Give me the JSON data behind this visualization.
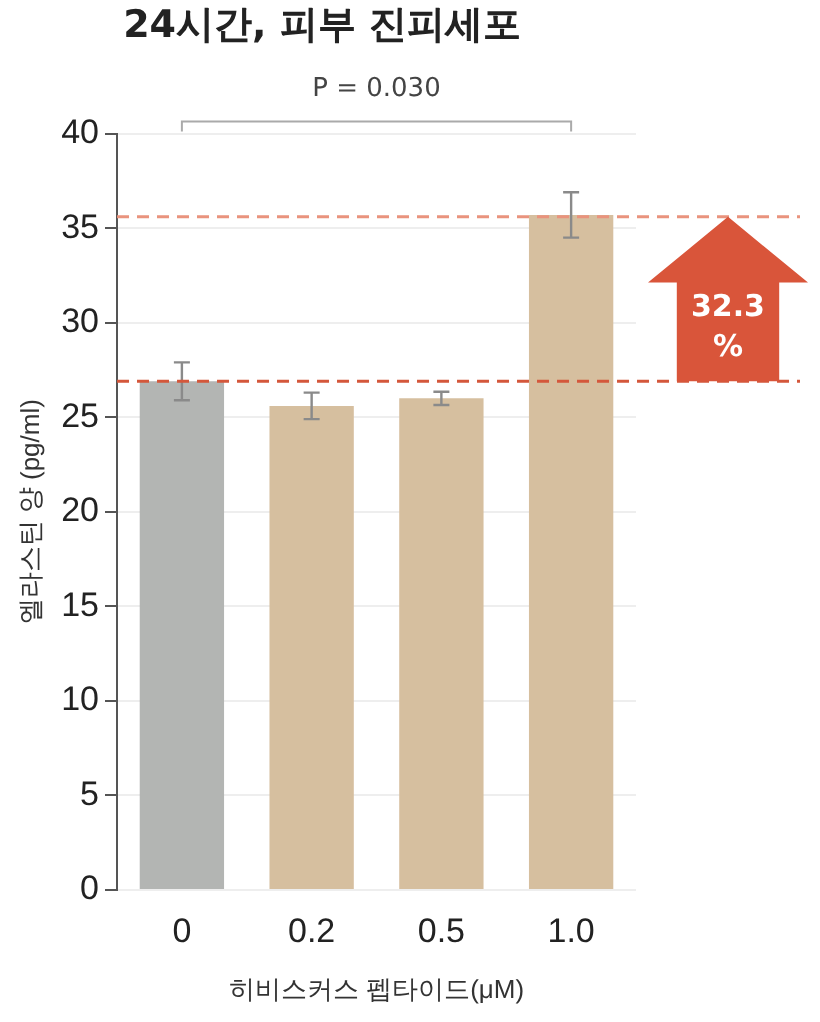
{
  "chart_data": {
    "type": "bar",
    "title": "24시간, 피부 진피세포",
    "xlabel": "히비스커스 펩타이드(μM)",
    "ylabel": "엘라스틴 양 (pg/ml)",
    "categories": [
      "0",
      "0.2",
      "0.5",
      "1.0"
    ],
    "values": [
      26.9,
      25.6,
      26.0,
      35.7
    ],
    "colors": [
      "#b3b5b3",
      "#d6bf9f",
      "#d6bf9f",
      "#d6bf9f"
    ],
    "errors": [
      1.0,
      0.7,
      0.35,
      1.2
    ],
    "ylim": [
      0,
      40
    ],
    "yticks": [
      0,
      5,
      10,
      15,
      20,
      25,
      30,
      35,
      40
    ],
    "grid": "y",
    "legend": false,
    "ref_lines": [
      {
        "axis": "y",
        "value": 26.9,
        "color": "#d4573b",
        "line_style": "dashed"
      },
      {
        "axis": "y",
        "value": 35.6,
        "color": "#e9937d",
        "line_style": "dashed"
      }
    ],
    "annotations": [
      "P = 0.030",
      "32.3 %"
    ]
  }
}
